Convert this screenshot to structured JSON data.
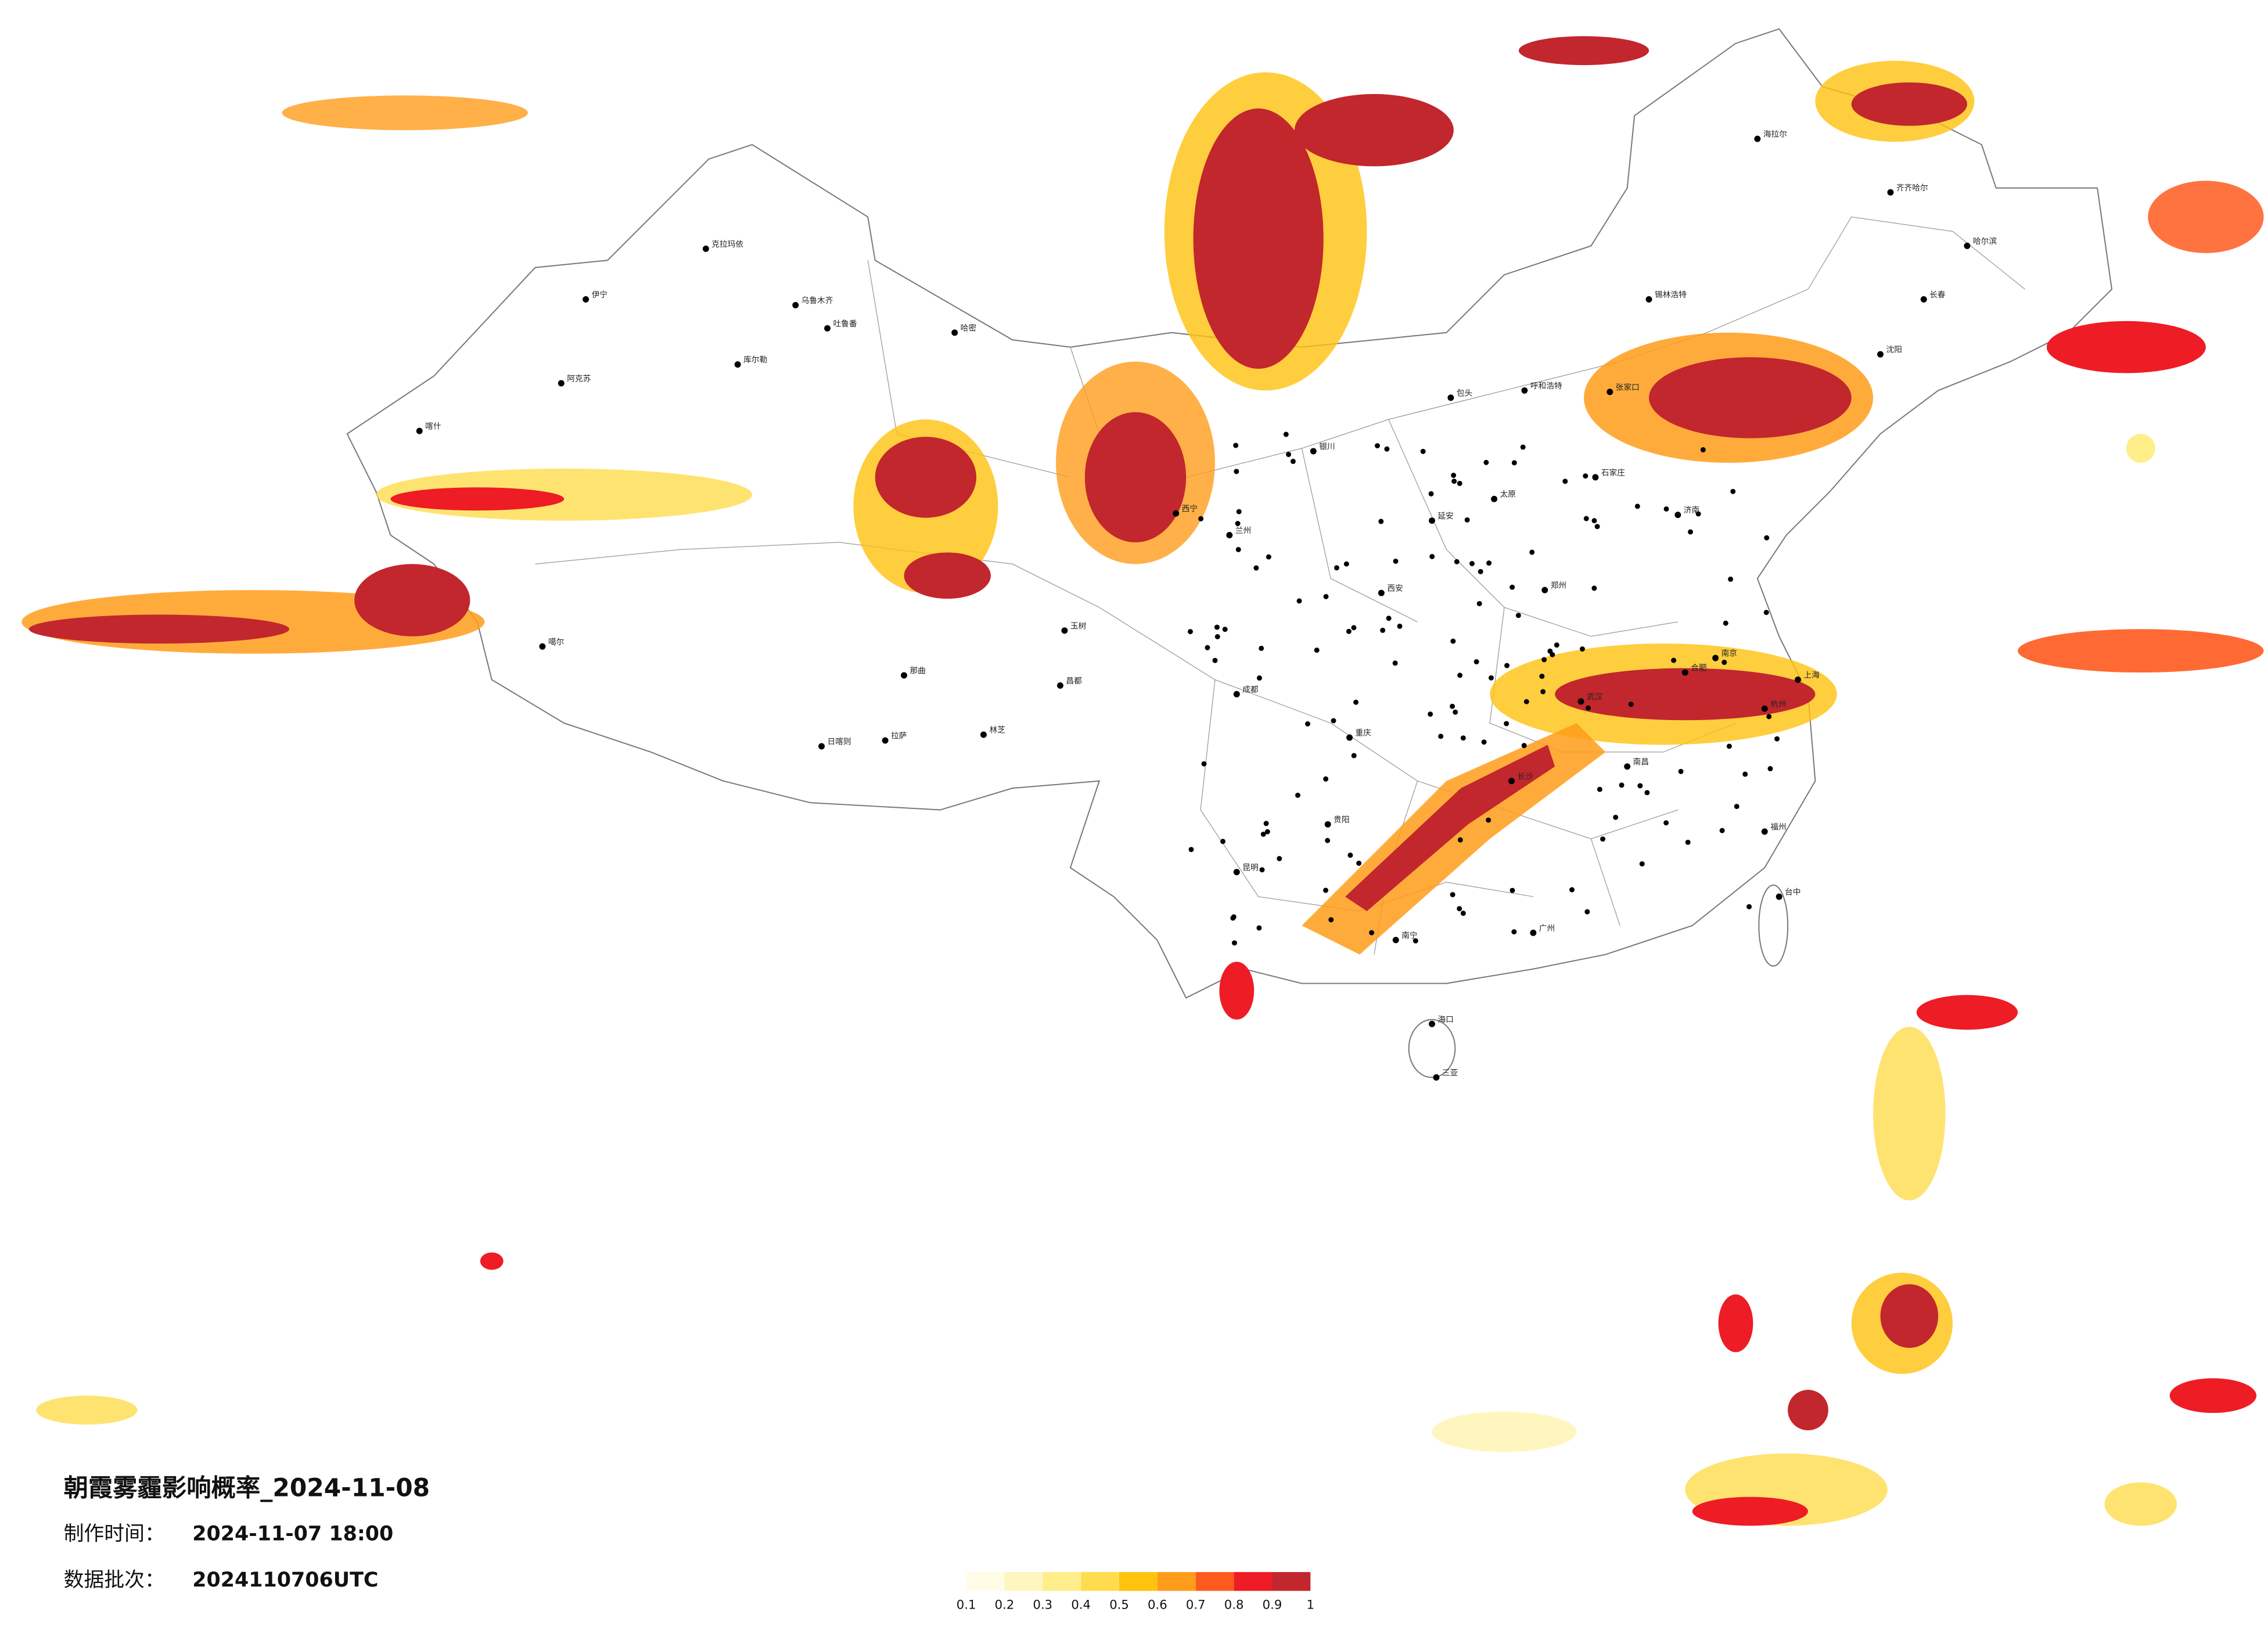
{
  "title": "朝霞雾霾影响概率_2024-11-08",
  "production_time": {
    "label": "制作时间：",
    "value": "2024-11-07 18:00"
  },
  "data_batch": {
    "label": "数据批次：",
    "value": "2024110706UTC"
  },
  "legend": {
    "colors": [
      "#fffce8",
      "#fff6bf",
      "#ffee8a",
      "#ffdc4e",
      "#ffc20e",
      "#ff9c1a",
      "#ff5a1e",
      "#ee1c25",
      "#c1272d"
    ],
    "ticks": [
      0.1,
      0.2,
      0.3,
      0.4,
      0.5,
      0.6,
      0.7,
      0.8,
      0.9,
      1
    ]
  },
  "cities": [
    "克拉玛依",
    "伊宁",
    "乌鲁木齐",
    "吐鲁番",
    "哈密",
    "库尔勒",
    "阿克苏",
    "喀什",
    "噶尔",
    "那曲",
    "日喀则",
    "拉萨",
    "林芝",
    "昌都",
    "玉树",
    "西宁",
    "兰州",
    "银川",
    "呼和浩特",
    "包头",
    "张家口",
    "太原",
    "石家庄",
    "济南",
    "郑州",
    "西安",
    "成都",
    "重庆",
    "贵阳",
    "昆明",
    "南宁",
    "广州",
    "长沙",
    "武汉",
    "南京",
    "上海",
    "杭州",
    "福州",
    "南昌",
    "合肥",
    "海口",
    "三亚",
    "台中",
    "哈尔滨",
    "长春",
    "沈阳",
    "齐齐哈尔",
    "海拉尔",
    "锡林浩特",
    "延安"
  ]
}
